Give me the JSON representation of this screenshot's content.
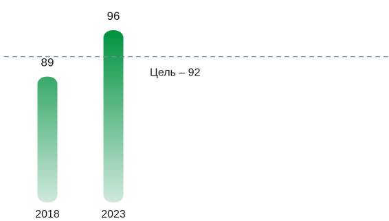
{
  "chart_data": {
    "type": "bar",
    "categories": [
      "2018",
      "2023"
    ],
    "values": [
      89,
      96
    ],
    "value_labels": [
      "89",
      "96"
    ],
    "ylim": [
      70,
      96
    ],
    "grid": false,
    "legend": "none",
    "target": {
      "value": 92,
      "label": "Цель – 92",
      "style": "dashed"
    },
    "colors": {
      "bar_top": "#00923f",
      "bar_bottom": "#cfe8dc",
      "target_line": "#6b8aa8"
    }
  }
}
